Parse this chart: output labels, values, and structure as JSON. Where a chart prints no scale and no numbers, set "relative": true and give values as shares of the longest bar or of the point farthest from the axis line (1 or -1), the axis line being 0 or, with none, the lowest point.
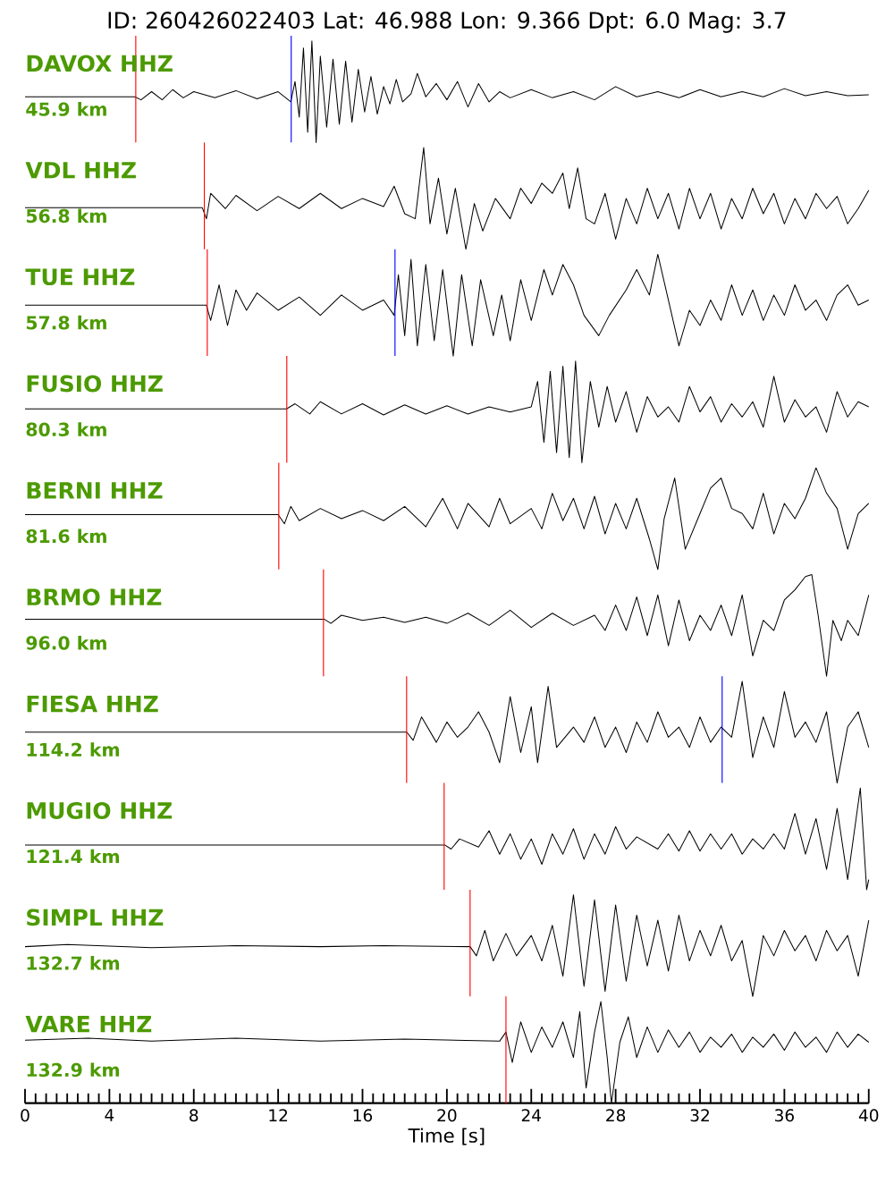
{
  "chart_data": [
    {
      "type": "line",
      "relative": true,
      "title": "ID: 260426022403 Lat: 46.988 Lon: 9.366 Dpt: 6.0 Mag: 3.7",
      "subtitle": "DAVOX HHZ",
      "annotations": [
        "45.9 km"
      ],
      "xlim": [
        0,
        40
      ],
      "tick_labels": false,
      "ref_lines": [
        {
          "axis": "x",
          "value": 5.25,
          "color": "#ff0000"
        },
        {
          "axis": "x",
          "value": 12.62,
          "color": "#0000ff"
        }
      ],
      "series": [
        {
          "color": "#000000",
          "x": [
            0,
            5.2,
            5.5,
            6,
            6.5,
            7,
            7.5,
            8,
            9,
            10,
            11,
            12,
            12.6,
            12.8,
            13.0,
            13.2,
            13.4,
            13.6,
            13.8,
            14.0,
            14.3,
            14.6,
            14.9,
            15.2,
            15.5,
            15.8,
            16.1,
            16.4,
            16.7,
            17.0,
            17.3,
            17.6,
            17.9,
            18.3,
            18.6,
            19.0,
            19.5,
            20,
            20.5,
            21,
            21.5,
            22,
            22.5,
            23,
            24,
            25,
            26,
            27,
            28,
            29,
            30,
            31,
            32,
            33,
            34,
            35,
            36,
            37,
            38,
            39,
            40
          ],
          "values": [
            0.45,
            0.45,
            0.42,
            0.5,
            0.42,
            0.52,
            0.44,
            0.5,
            0.44,
            0.51,
            0.43,
            0.5,
            0.4,
            0.6,
            0.25,
            0.93,
            0.1,
            1.0,
            0.0,
            0.85,
            0.15,
            0.82,
            0.18,
            0.8,
            0.2,
            0.72,
            0.3,
            0.65,
            0.28,
            0.55,
            0.38,
            0.62,
            0.4,
            0.48,
            0.68,
            0.45,
            0.58,
            0.42,
            0.6,
            0.35,
            0.58,
            0.4,
            0.5,
            0.44,
            0.52,
            0.44,
            0.5,
            0.42,
            0.55,
            0.45,
            0.5,
            0.44,
            0.52,
            0.45,
            0.5,
            0.45,
            0.53,
            0.46,
            0.5,
            0.46,
            0.47
          ]
        }
      ]
    },
    {
      "type": "line",
      "relative": true,
      "subtitle": "VDL HHZ",
      "annotations": [
        "56.8 km"
      ],
      "xlim": [
        0,
        40
      ],
      "tick_labels": false,
      "ref_lines": [
        {
          "axis": "x",
          "value": 8.5,
          "color": "#ff0000"
        }
      ],
      "series": [
        {
          "color": "#000000",
          "x": [
            0,
            8.4,
            8.6,
            8.8,
            9.5,
            10,
            11,
            12,
            13,
            14,
            15,
            16,
            17,
            17.5,
            18,
            18.5,
            18.9,
            19.2,
            19.6,
            20,
            20.4,
            20.9,
            21.3,
            21.7,
            22.3,
            23,
            23.5,
            24,
            24.5,
            25,
            25.5,
            25.8,
            26.2,
            26.6,
            27,
            27.5,
            28,
            28.5,
            29,
            29.5,
            30,
            30.5,
            31,
            31.5,
            32,
            32.5,
            33,
            33.5,
            34,
            34.5,
            35,
            35.5,
            36,
            36.5,
            37,
            37.5,
            38,
            38.5,
            39,
            39.5,
            40
          ],
          "values": [
            0.41,
            0.41,
            0.3,
            0.55,
            0.4,
            0.53,
            0.38,
            0.52,
            0.4,
            0.55,
            0.4,
            0.5,
            0.42,
            0.62,
            0.35,
            0.3,
            1.0,
            0.25,
            0.7,
            0.15,
            0.6,
            0.0,
            0.45,
            0.18,
            0.5,
            0.3,
            0.6,
            0.45,
            0.65,
            0.55,
            0.75,
            0.4,
            0.8,
            0.3,
            0.25,
            0.55,
            0.1,
            0.5,
            0.25,
            0.6,
            0.3,
            0.55,
            0.2,
            0.6,
            0.3,
            0.55,
            0.2,
            0.5,
            0.3,
            0.6,
            0.35,
            0.55,
            0.25,
            0.5,
            0.3,
            0.55,
            0.4,
            0.52,
            0.25,
            0.4,
            0.58
          ]
        }
      ]
    },
    {
      "type": "line",
      "relative": true,
      "subtitle": "TUE HHZ",
      "annotations": [
        "57.8 km"
      ],
      "xlim": [
        0,
        40
      ],
      "tick_labels": false,
      "ref_lines": [
        {
          "axis": "x",
          "value": 8.64,
          "color": "#ff0000"
        },
        {
          "axis": "x",
          "value": 17.54,
          "color": "#0000ff"
        }
      ],
      "series": [
        {
          "color": "#000000",
          "x": [
            0,
            8.6,
            8.8,
            9.2,
            9.6,
            10,
            10.5,
            11,
            12,
            13,
            14,
            15,
            16,
            17,
            17.5,
            17.7,
            18,
            18.3,
            18.6,
            19,
            19.4,
            19.8,
            20.3,
            20.7,
            21.2,
            21.6,
            22.2,
            22.6,
            23,
            23.5,
            24,
            24.6,
            25,
            25.5,
            26,
            26.5,
            27.2,
            27.7,
            28.5,
            29,
            29.6,
            30,
            30.5,
            31,
            31.5,
            32,
            32.5,
            33,
            33.5,
            34,
            34.5,
            35,
            35.5,
            36,
            36.5,
            37,
            37.5,
            38,
            38.5,
            39,
            39.5,
            40
          ],
          "values": [
            0.5,
            0.5,
            0.35,
            0.7,
            0.3,
            0.65,
            0.45,
            0.62,
            0.45,
            0.58,
            0.4,
            0.6,
            0.45,
            0.55,
            0.4,
            0.8,
            0.2,
            0.95,
            0.1,
            0.9,
            0.15,
            0.85,
            0.0,
            0.8,
            0.1,
            0.75,
            0.2,
            0.6,
            0.15,
            0.75,
            0.35,
            0.85,
            0.6,
            0.9,
            0.7,
            0.4,
            0.2,
            0.4,
            0.65,
            0.85,
            0.6,
            1.0,
            0.55,
            0.1,
            0.45,
            0.3,
            0.55,
            0.35,
            0.7,
            0.4,
            0.65,
            0.35,
            0.6,
            0.4,
            0.7,
            0.45,
            0.55,
            0.35,
            0.6,
            0.7,
            0.5,
            0.55
          ]
        }
      ]
    },
    {
      "type": "line",
      "relative": true,
      "subtitle": "FUSIO HHZ",
      "annotations": [
        "80.3 km"
      ],
      "xlim": [
        0,
        40
      ],
      "tick_labels": false,
      "ref_lines": [
        {
          "axis": "x",
          "value": 12.41,
          "color": "#ff0000"
        }
      ],
      "series": [
        {
          "color": "#000000",
          "x": [
            0,
            12.4,
            12.8,
            13.5,
            14,
            15,
            16,
            17,
            18,
            19,
            20,
            21,
            22,
            23,
            24,
            24.3,
            24.6,
            24.9,
            25.2,
            25.5,
            25.8,
            26.1,
            26.4,
            26.8,
            27.2,
            27.6,
            28,
            28.5,
            29,
            29.5,
            30,
            30.5,
            31,
            31.5,
            32,
            32.5,
            33,
            33.5,
            34,
            34.5,
            35,
            35.5,
            36,
            36.5,
            37,
            37.5,
            38,
            38.5,
            39,
            39.5,
            40
          ],
          "values": [
            0.53,
            0.53,
            0.58,
            0.48,
            0.6,
            0.48,
            0.58,
            0.47,
            0.57,
            0.48,
            0.56,
            0.48,
            0.55,
            0.5,
            0.55,
            0.8,
            0.2,
            0.9,
            0.1,
            0.95,
            0.05,
            1.0,
            0.0,
            0.8,
            0.35,
            0.75,
            0.4,
            0.7,
            0.3,
            0.65,
            0.45,
            0.55,
            0.4,
            0.75,
            0.5,
            0.65,
            0.4,
            0.58,
            0.45,
            0.6,
            0.35,
            0.85,
            0.4,
            0.62,
            0.45,
            0.55,
            0.3,
            0.7,
            0.45,
            0.6,
            0.55
          ]
        }
      ]
    },
    {
      "type": "line",
      "relative": true,
      "subtitle": "BERNI HHZ",
      "annotations": [
        "81.6 km"
      ],
      "xlim": [
        0,
        40
      ],
      "tick_labels": false,
      "ref_lines": [
        {
          "axis": "x",
          "value": 12.03,
          "color": "#ff0000"
        }
      ],
      "series": [
        {
          "color": "#000000",
          "x": [
            0,
            12.0,
            12.3,
            12.6,
            13,
            14,
            15,
            16,
            17,
            18,
            19,
            19.8,
            20.5,
            21,
            22,
            22.5,
            23,
            24,
            24.5,
            25,
            25.5,
            26,
            26.5,
            27,
            27.5,
            28,
            28.5,
            29,
            29.6,
            30,
            30.3,
            30.8,
            31.3,
            32,
            32.5,
            33,
            33.5,
            34,
            34.5,
            35,
            35.5,
            36,
            36.5,
            37,
            37.5,
            38,
            38.5,
            39,
            39.5,
            40
          ],
          "values": [
            0.54,
            0.54,
            0.45,
            0.62,
            0.48,
            0.6,
            0.5,
            0.58,
            0.48,
            0.62,
            0.42,
            0.7,
            0.4,
            0.65,
            0.42,
            0.7,
            0.45,
            0.6,
            0.4,
            0.75,
            0.48,
            0.7,
            0.4,
            0.72,
            0.35,
            0.65,
            0.4,
            0.7,
            0.3,
            0.0,
            0.5,
            0.9,
            0.2,
            0.55,
            0.8,
            0.9,
            0.6,
            0.55,
            0.4,
            0.75,
            0.35,
            0.65,
            0.5,
            0.7,
            1.0,
            0.75,
            0.6,
            0.2,
            0.55,
            0.65
          ]
        }
      ]
    },
    {
      "type": "line",
      "relative": true,
      "subtitle": "BRMO HHZ",
      "annotations": [
        "96.0 km"
      ],
      "xlim": [
        0,
        40
      ],
      "tick_labels": false,
      "ref_lines": [
        {
          "axis": "x",
          "value": 14.15,
          "color": "#ff0000"
        }
      ],
      "series": [
        {
          "color": "#000000",
          "x": [
            0,
            14.2,
            14.5,
            15,
            16,
            17,
            18,
            19,
            20,
            21,
            22,
            23,
            24,
            25,
            26,
            27,
            27.5,
            28,
            28.5,
            29,
            29.5,
            30,
            30.5,
            31,
            31.5,
            32,
            32.5,
            33,
            33.5,
            34,
            34.5,
            35,
            35.5,
            36,
            36.5,
            37,
            37.3,
            37.6,
            38,
            38.3,
            38.7,
            39,
            39.5,
            40
          ],
          "values": [
            0.56,
            0.56,
            0.52,
            0.6,
            0.55,
            0.58,
            0.53,
            0.58,
            0.52,
            0.62,
            0.5,
            0.65,
            0.48,
            0.62,
            0.5,
            0.6,
            0.45,
            0.7,
            0.45,
            0.78,
            0.4,
            0.8,
            0.3,
            0.75,
            0.35,
            0.6,
            0.45,
            0.7,
            0.4,
            0.8,
            0.2,
            0.55,
            0.45,
            0.75,
            0.85,
            0.98,
            1.0,
            0.6,
            0.0,
            0.55,
            0.35,
            0.55,
            0.4,
            0.8
          ]
        }
      ]
    },
    {
      "type": "line",
      "relative": true,
      "subtitle": "FIESA HHZ",
      "annotations": [
        "114.2 km"
      ],
      "xlim": [
        0,
        40
      ],
      "tick_labels": false,
      "ref_lines": [
        {
          "axis": "x",
          "value": 18.09,
          "color": "#ff0000"
        },
        {
          "axis": "x",
          "value": 33.05,
          "color": "#0000ff"
        }
      ],
      "series": [
        {
          "color": "#000000",
          "x": [
            0,
            18.1,
            18.4,
            18.8,
            19.5,
            20,
            20.5,
            21,
            21.5,
            22,
            22.5,
            23,
            23.5,
            24,
            24.3,
            24.8,
            25.2,
            26,
            26.5,
            27,
            27.5,
            28,
            28.5,
            29,
            29.5,
            30,
            30.5,
            31,
            31.5,
            32,
            32.5,
            33,
            33.5,
            34,
            34.5,
            35,
            35.5,
            36,
            36.5,
            37,
            37.5,
            38,
            38.5,
            39,
            39.5,
            40
          ],
          "values": [
            0.5,
            0.5,
            0.42,
            0.65,
            0.4,
            0.6,
            0.45,
            0.55,
            0.7,
            0.5,
            0.2,
            0.85,
            0.3,
            0.75,
            0.2,
            0.95,
            0.35,
            0.55,
            0.4,
            0.65,
            0.35,
            0.55,
            0.3,
            0.6,
            0.4,
            0.7,
            0.45,
            0.55,
            0.35,
            0.65,
            0.4,
            0.55,
            0.45,
            1.0,
            0.25,
            0.65,
            0.35,
            0.9,
            0.45,
            0.6,
            0.4,
            0.7,
            0.0,
            0.55,
            0.7,
            0.35
          ]
        }
      ]
    },
    {
      "type": "line",
      "relative": true,
      "subtitle": "MUGIO HHZ",
      "annotations": [
        "121.4 km"
      ],
      "xlim": [
        0,
        40
      ],
      "tick_labels": false,
      "ref_lines": [
        {
          "axis": "x",
          "value": 19.87,
          "color": "#ff0000"
        }
      ],
      "series": [
        {
          "color": "#000000",
          "x": [
            0,
            19.9,
            20.2,
            20.6,
            21.5,
            22,
            22.5,
            23,
            23.5,
            24,
            24.5,
            25,
            25.5,
            26,
            26.5,
            27,
            27.5,
            28,
            28.5,
            29,
            30,
            30.5,
            31,
            31.5,
            32,
            32.5,
            33,
            33.5,
            34,
            34.5,
            35,
            35.5,
            36,
            36.5,
            37,
            37.5,
            38,
            38.5,
            39,
            39.6,
            39.9,
            40
          ],
          "values": [
            0.44,
            0.44,
            0.4,
            0.5,
            0.42,
            0.58,
            0.35,
            0.55,
            0.3,
            0.5,
            0.25,
            0.55,
            0.35,
            0.6,
            0.3,
            0.55,
            0.35,
            0.62,
            0.4,
            0.52,
            0.4,
            0.55,
            0.38,
            0.58,
            0.38,
            0.55,
            0.4,
            0.55,
            0.35,
            0.5,
            0.4,
            0.55,
            0.4,
            0.75,
            0.35,
            0.7,
            0.2,
            0.8,
            0.1,
            1.0,
            0.0,
            0.1
          ]
        }
      ]
    },
    {
      "type": "line",
      "relative": true,
      "subtitle": "SIMPL HHZ",
      "annotations": [
        "132.7 km"
      ],
      "xlim": [
        0,
        40
      ],
      "tick_labels": false,
      "ref_lines": [
        {
          "axis": "x",
          "value": 21.1,
          "color": "#ff0000"
        }
      ],
      "series": [
        {
          "color": "#000000",
          "x": [
            0,
            2,
            6,
            10,
            14,
            17,
            21.1,
            21.4,
            21.8,
            22.2,
            22.8,
            23.3,
            24,
            24.5,
            25,
            25.5,
            26,
            26.5,
            27,
            27.5,
            28,
            28.5,
            29,
            29.5,
            30,
            30.5,
            31,
            31.5,
            32,
            32.5,
            33,
            33.5,
            34,
            34.5,
            35,
            35.5,
            36,
            36.5,
            37,
            37.5,
            38,
            38.5,
            39,
            39.5,
            40
          ],
          "values": [
            0.49,
            0.51,
            0.48,
            0.5,
            0.49,
            0.5,
            0.49,
            0.4,
            0.65,
            0.35,
            0.62,
            0.4,
            0.6,
            0.35,
            0.7,
            0.2,
            1.0,
            0.1,
            0.95,
            0.05,
            0.9,
            0.15,
            0.8,
            0.3,
            0.75,
            0.25,
            0.8,
            0.35,
            0.65,
            0.4,
            0.7,
            0.35,
            0.55,
            0.0,
            0.6,
            0.4,
            0.65,
            0.45,
            0.6,
            0.35,
            0.65,
            0.45,
            0.6,
            0.2,
            0.75
          ]
        }
      ]
    },
    {
      "type": "line",
      "relative": true,
      "subtitle": "VARE HHZ",
      "annotations": [
        "132.9 km"
      ],
      "xlim": [
        0,
        40
      ],
      "xlabel": "Time [s]",
      "tick_labels": "x",
      "xticks": [
        0,
        {
          "value": 0.5,
          "label": null
        },
        {
          "value": 1,
          "label": null
        },
        {
          "value": 1.5,
          "label": null
        },
        {
          "value": 2,
          "label": null
        },
        {
          "value": 2.5,
          "label": null
        },
        {
          "value": 3,
          "label": null
        },
        {
          "value": 3.5,
          "label": null
        },
        4,
        {
          "value": 4.5,
          "label": null
        },
        {
          "value": 5,
          "label": null
        },
        {
          "value": 5.5,
          "label": null
        },
        {
          "value": 6,
          "label": null
        },
        {
          "value": 6.5,
          "label": null
        },
        {
          "value": 7,
          "label": null
        },
        {
          "value": 7.5,
          "label": null
        },
        8,
        {
          "value": 8.5,
          "label": null
        },
        {
          "value": 9,
          "label": null
        },
        {
          "value": 9.5,
          "label": null
        },
        {
          "value": 10,
          "label": null
        },
        {
          "value": 10.5,
          "label": null
        },
        {
          "value": 11,
          "label": null
        },
        {
          "value": 11.5,
          "label": null
        },
        12,
        {
          "value": 12.5,
          "label": null
        },
        {
          "value": 13,
          "label": null
        },
        {
          "value": 13.5,
          "label": null
        },
        {
          "value": 14,
          "label": null
        },
        {
          "value": 14.5,
          "label": null
        },
        {
          "value": 15,
          "label": null
        },
        {
          "value": 15.5,
          "label": null
        },
        16,
        {
          "value": 16.5,
          "label": null
        },
        {
          "value": 17,
          "label": null
        },
        {
          "value": 17.5,
          "label": null
        },
        {
          "value": 18,
          "label": null
        },
        {
          "value": 18.5,
          "label": null
        },
        {
          "value": 19,
          "label": null
        },
        {
          "value": 19.5,
          "label": null
        },
        20,
        {
          "value": 20.5,
          "label": null
        },
        {
          "value": 21,
          "label": null
        },
        {
          "value": 21.5,
          "label": null
        },
        {
          "value": 22,
          "label": null
        },
        {
          "value": 22.5,
          "label": null
        },
        {
          "value": 23,
          "label": null
        },
        {
          "value": 23.5,
          "label": null
        },
        24,
        {
          "value": 24.5,
          "label": null
        },
        {
          "value": 25,
          "label": null
        },
        {
          "value": 25.5,
          "label": null
        },
        {
          "value": 26,
          "label": null
        },
        {
          "value": 26.5,
          "label": null
        },
        {
          "value": 27,
          "label": null
        },
        {
          "value": 27.5,
          "label": null
        },
        28,
        {
          "value": 28.5,
          "label": null
        },
        {
          "value": 29,
          "label": null
        },
        {
          "value": 29.5,
          "label": null
        },
        {
          "value": 30,
          "label": null
        },
        {
          "value": 30.5,
          "label": null
        },
        {
          "value": 31,
          "label": null
        },
        {
          "value": 31.5,
          "label": null
        },
        32,
        {
          "value": 32.5,
          "label": null
        },
        {
          "value": 33,
          "label": null
        },
        {
          "value": 33.5,
          "label": null
        },
        {
          "value": 34,
          "label": null
        },
        {
          "value": 34.5,
          "label": null
        },
        {
          "value": 35,
          "label": null
        },
        {
          "value": 35.5,
          "label": null
        },
        36,
        {
          "value": 36.5,
          "label": null
        },
        {
          "value": 37,
          "label": null
        },
        {
          "value": 37.5,
          "label": null
        },
        {
          "value": 38,
          "label": null
        },
        {
          "value": 38.5,
          "label": null
        },
        {
          "value": 39,
          "label": null
        },
        {
          "value": 39.5,
          "label": null
        },
        40
      ],
      "ref_lines": [
        {
          "axis": "x",
          "value": 22.8,
          "color": "#ff0000"
        }
      ],
      "series": [
        {
          "color": "#000000",
          "x": [
            0,
            3,
            6,
            10,
            14,
            18,
            22.5,
            22.8,
            23.1,
            23.5,
            24,
            24.5,
            25,
            25.5,
            26,
            26.3,
            26.6,
            27,
            27.3,
            27.6,
            27.8,
            28.2,
            28.6,
            29,
            29.5,
            30,
            30.5,
            31,
            31.5,
            32,
            32.5,
            33,
            33.5,
            34,
            34.5,
            35,
            35.5,
            36,
            36.5,
            37,
            37.5,
            38,
            38.5,
            39,
            39.5,
            40
          ],
          "values": [
            0.62,
            0.64,
            0.61,
            0.64,
            0.61,
            0.63,
            0.61,
            0.7,
            0.4,
            0.8,
            0.5,
            0.75,
            0.55,
            0.8,
            0.45,
            0.9,
            0.15,
            0.7,
            1.0,
            0.45,
            0.0,
            0.6,
            0.85,
            0.45,
            0.75,
            0.5,
            0.72,
            0.55,
            0.7,
            0.5,
            0.65,
            0.55,
            0.68,
            0.5,
            0.65,
            0.55,
            0.68,
            0.52,
            0.7,
            0.55,
            0.65,
            0.5,
            0.7,
            0.55,
            0.68,
            0.6
          ]
        }
      ]
    }
  ]
}
